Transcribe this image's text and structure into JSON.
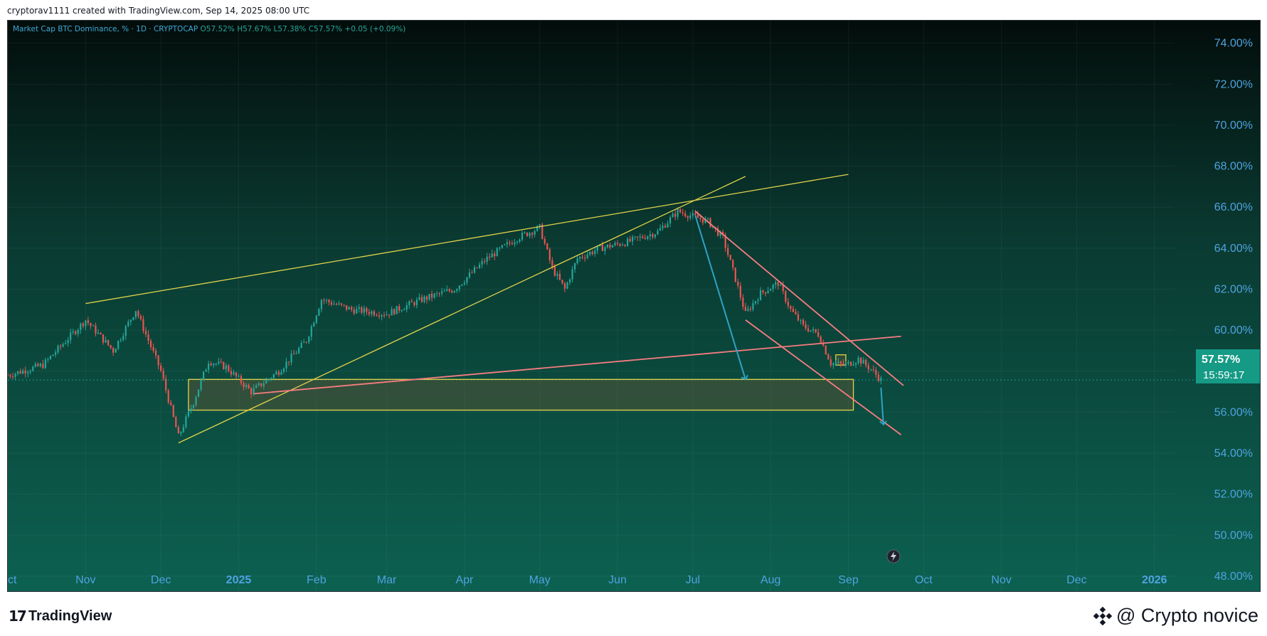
{
  "header": {
    "credit": "cryptorav1111 created with TradingView.com, Sep 14, 2025 08:00 UTC"
  },
  "legend": {
    "title": "Market Cap BTC Dominance, % · 1D · CRYPTOCAP",
    "open": "O57.52%",
    "high": "H57.67%",
    "low": "L57.38%",
    "close": "C57.57%",
    "change": "+0.05 (+0.09%)"
  },
  "price_label": {
    "value": "57.57%",
    "countdown": "15:59:17"
  },
  "footer": {
    "brand": "TradingView",
    "watermark": "@ Crypto novice"
  },
  "colors": {
    "up": "#26a69a",
    "down": "#ef5350",
    "trendline_yellow": "#e3d34a",
    "trendline_pink": "#f77c80",
    "arrow": "#2ea3c6",
    "axis_text": "#4fa3e0",
    "last_price_bg": "#159a86"
  },
  "chart_data": {
    "type": "candlestick",
    "x_ticks": [
      "Oct",
      "Nov",
      "Dec",
      "2025",
      "Feb",
      "Mar",
      "Apr",
      "May",
      "Jun",
      "Jul",
      "Aug",
      "Sep",
      "Oct",
      "Nov",
      "Dec",
      "2026"
    ],
    "y_ticks": [
      "74.00%",
      "72.00%",
      "70.00%",
      "68.00%",
      "66.00%",
      "64.00%",
      "62.00%",
      "60.00%",
      "58.00%",
      "56.00%",
      "54.00%",
      "52.00%",
      "50.00%",
      "48.00%"
    ],
    "ylim": [
      47.2,
      75.1
    ],
    "xlim": [
      "2024-10-01",
      "2026-01-09"
    ],
    "last_value": 57.57,
    "series": [
      {
        "values": [
          [
            "2024-10-01",
            57.8
          ],
          [
            "2024-10-15",
            58.3
          ],
          [
            "2024-11-01",
            60.5
          ],
          [
            "2024-11-12",
            59.0
          ],
          [
            "2024-11-21",
            61.0
          ],
          [
            "2024-12-01",
            58.0
          ],
          [
            "2024-12-08",
            54.8
          ],
          [
            "2024-12-14",
            56.5
          ],
          [
            "2024-12-20",
            58.5
          ],
          [
            "2024-12-27",
            58.2
          ],
          [
            "2025-01-06",
            57.0
          ],
          [
            "2025-01-17",
            58.0
          ],
          [
            "2025-01-28",
            59.5
          ],
          [
            "2025-02-03",
            61.5
          ],
          [
            "2025-02-15",
            61.0
          ],
          [
            "2025-03-01",
            60.8
          ],
          [
            "2025-03-15",
            61.5
          ],
          [
            "2025-03-28",
            62.0
          ],
          [
            "2025-04-10",
            63.5
          ],
          [
            "2025-04-22",
            64.5
          ],
          [
            "2025-05-01",
            65.0
          ],
          [
            "2025-05-06",
            63.0
          ],
          [
            "2025-05-11",
            62.0
          ],
          [
            "2025-05-16",
            63.5
          ],
          [
            "2025-05-25",
            64.0
          ],
          [
            "2025-06-05",
            64.3
          ],
          [
            "2025-06-17",
            64.8
          ],
          [
            "2025-06-25",
            65.8
          ],
          [
            "2025-06-30",
            65.6
          ],
          [
            "2025-07-07",
            65.3
          ],
          [
            "2025-07-13",
            64.5
          ],
          [
            "2025-07-18",
            62.5
          ],
          [
            "2025-07-22",
            60.8
          ],
          [
            "2025-07-28",
            61.8
          ],
          [
            "2025-08-04",
            62.3
          ],
          [
            "2025-08-09",
            61.0
          ],
          [
            "2025-08-14",
            60.2
          ],
          [
            "2025-08-20",
            59.8
          ],
          [
            "2025-08-25",
            58.4
          ],
          [
            "2025-08-31",
            58.3
          ],
          [
            "2025-09-05",
            58.6
          ],
          [
            "2025-09-10",
            58.1
          ],
          [
            "2025-09-14",
            57.57
          ]
        ]
      }
    ],
    "drawings": {
      "rectangles": [
        {
          "x": [
            "2024-12-12",
            "2025-09-03"
          ],
          "y": [
            56.1,
            57.6
          ]
        },
        {
          "x": [
            "2025-08-27",
            "2025-08-31"
          ],
          "y": [
            58.3,
            58.8
          ]
        }
      ],
      "trendlines": [
        {
          "color": "yellow",
          "points": [
            [
              "2024-11-01",
              61.3
            ],
            [
              "2025-07-01",
              66.3
            ]
          ],
          "extended_to": [
            "2025-09-01",
            67.6
          ]
        },
        {
          "color": "yellow",
          "points": [
            [
              "2024-12-08",
              54.5
            ],
            [
              "2025-07-01",
              66.3
            ]
          ],
          "extended_to": [
            "2025-07-22",
            67.5
          ]
        },
        {
          "color": "pink",
          "points": [
            [
              "2025-01-07",
              56.9
            ],
            [
              "2025-09-22",
              59.7
            ]
          ]
        },
        {
          "color": "pink",
          "points": [
            [
              "2025-07-02",
              65.8
            ],
            [
              "2025-09-23",
              57.3
            ]
          ]
        },
        {
          "color": "pink",
          "points": [
            [
              "2025-07-22",
              60.5
            ],
            [
              "2025-09-22",
              54.9
            ]
          ]
        }
      ],
      "arrows": [
        {
          "from": [
            "2025-07-02",
            65.6
          ],
          "to": [
            "2025-07-22",
            57.6
          ]
        },
        {
          "from": [
            "2025-09-14",
            57.2
          ],
          "to": [
            "2025-09-15",
            55.4
          ]
        }
      ]
    }
  }
}
